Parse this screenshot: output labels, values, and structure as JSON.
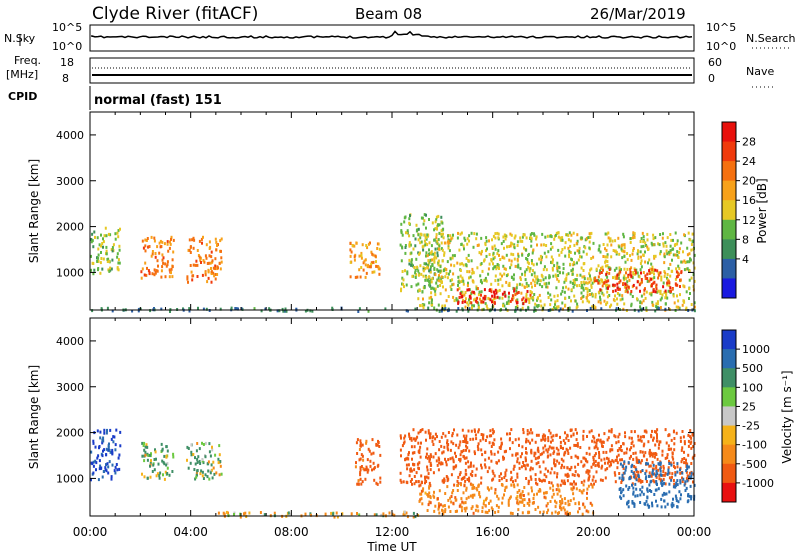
{
  "header": {
    "station": "Clyde River (fitACF)",
    "beam": "Beam 08",
    "date": "26/Mar/2019"
  },
  "noise_panel": {
    "left_label": "N.Sky",
    "left_ticks": [
      "10^5",
      "10^0"
    ],
    "right_label": "N.Search",
    "right_ticks": [
      "10^5",
      "10^0"
    ]
  },
  "freq_panel": {
    "left_label_1": "Freq.",
    "left_label_2": "[MHz]",
    "left_ticks": [
      "18",
      "8"
    ],
    "right_label": "Nave",
    "right_ticks": [
      "60",
      "0"
    ]
  },
  "cpid": {
    "label": "CPID",
    "value": "normal (fast) 151"
  },
  "power_panel": {
    "ylabel": "Slant Range [km]",
    "colorbar_label": "Power [dB]",
    "colorbar_ticks": [
      "28",
      "24",
      "20",
      "16",
      "12",
      "8",
      "4"
    ],
    "colorbar_colors": [
      "#e8100c",
      "#f03a0c",
      "#f5700f",
      "#f7a11a",
      "#e6c824",
      "#5fb643",
      "#3d8f5a",
      "#2c5fa5",
      "#1a1ae0"
    ]
  },
  "velocity_panel": {
    "ylabel": "Slant Range [km]",
    "colorbar_label": "Velocity [m s⁻¹]",
    "colorbar_ticks": [
      "1000",
      "500",
      "100",
      "25",
      "-25",
      "-100",
      "-500",
      "-1000"
    ],
    "colorbar_colors": [
      "#1a3cc8",
      "#2a6db0",
      "#3f8f66",
      "#6cc940",
      "#c8c8c8",
      "#f5b21a",
      "#f58a1a",
      "#f05a12",
      "#e81010"
    ]
  },
  "x_axis": {
    "label": "Time UT",
    "ticks": [
      "00:00",
      "04:00",
      "08:00",
      "12:00",
      "16:00",
      "20:00",
      "00:00"
    ]
  },
  "chart_data": [
    {
      "type": "heatmap",
      "title": "Power",
      "x_range_hours": [
        0,
        24
      ],
      "y_range_km": [
        180,
        4500
      ],
      "yticks": [
        1000,
        2000,
        3000,
        4000
      ],
      "value_range": [
        0,
        30
      ],
      "regions": [
        {
          "t0": 0.0,
          "t1": 1.2,
          "r0": 1000,
          "r1": 2000,
          "value": 12
        },
        {
          "t0": 2.0,
          "t1": 3.3,
          "r0": 900,
          "r1": 1800,
          "value": 22
        },
        {
          "t0": 3.8,
          "t1": 5.2,
          "r0": 800,
          "r1": 1800,
          "value": 22
        },
        {
          "t0": 10.3,
          "t1": 11.5,
          "r0": 900,
          "r1": 1700,
          "value": 20
        },
        {
          "t0": 12.3,
          "t1": 14.0,
          "r0": 600,
          "r1": 2300,
          "value": 12
        },
        {
          "t0": 13.0,
          "t1": 24.0,
          "r0": 200,
          "r1": 1900,
          "value": 14
        },
        {
          "t0": 14.5,
          "t1": 17.5,
          "r0": 350,
          "r1": 700,
          "value": 28
        },
        {
          "t0": 20.0,
          "t1": 23.5,
          "r0": 600,
          "r1": 1100,
          "value": 26
        },
        {
          "t0": 0.0,
          "t1": 24.0,
          "r0": 180,
          "r1": 260,
          "value": 6
        }
      ]
    },
    {
      "type": "heatmap",
      "title": "Velocity",
      "x_range_hours": [
        0,
        24
      ],
      "y_range_km": [
        180,
        4500
      ],
      "yticks": [
        1000,
        2000,
        3000,
        4000
      ],
      "value_range": [
        -1000,
        1000
      ],
      "regions": [
        {
          "t0": 0.0,
          "t1": 1.2,
          "r0": 1000,
          "r1": 2100,
          "value": 800
        },
        {
          "t0": 2.0,
          "t1": 3.3,
          "r0": 1000,
          "r1": 1800,
          "value": 80
        },
        {
          "t0": 3.8,
          "t1": 5.2,
          "r0": 1000,
          "r1": 1800,
          "value": 60
        },
        {
          "t0": 10.5,
          "t1": 11.5,
          "r0": 900,
          "r1": 1900,
          "value": -400
        },
        {
          "t0": 12.3,
          "t1": 24.0,
          "r0": 900,
          "r1": 2100,
          "value": -450
        },
        {
          "t0": 13.0,
          "t1": 20.0,
          "r0": 250,
          "r1": 900,
          "value": -200
        },
        {
          "t0": 5.0,
          "t1": 13.0,
          "r0": 180,
          "r1": 300,
          "value": -60
        },
        {
          "t0": 21.0,
          "t1": 24.0,
          "r0": 400,
          "r1": 1400,
          "value": 600
        }
      ]
    }
  ]
}
